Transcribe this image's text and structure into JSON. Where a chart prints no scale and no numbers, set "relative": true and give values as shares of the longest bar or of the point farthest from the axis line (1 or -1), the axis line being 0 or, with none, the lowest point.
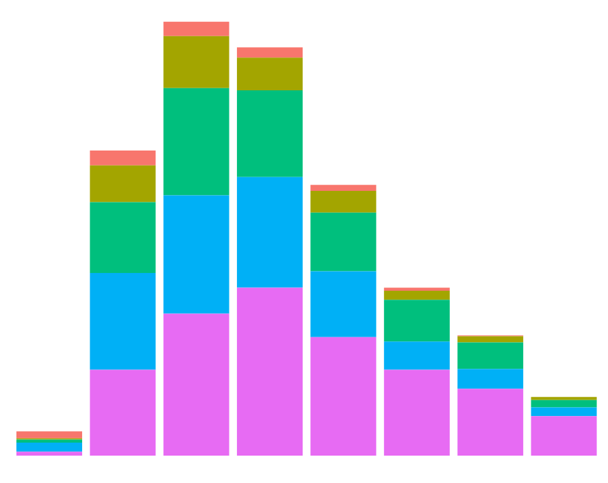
{
  "chart_data": {
    "type": "bar",
    "relative": true,
    "stacked": true,
    "categories": [
      null,
      null,
      null,
      null,
      null,
      null,
      null,
      null
    ],
    "series": [
      {
        "color": "#e76bf3",
        "values": [
          0.009,
          0.198,
          0.327,
          0.387,
          0.273,
          0.198,
          0.154,
          0.091
        ]
      },
      {
        "color": "#00b0f6",
        "values": [
          0.021,
          0.223,
          0.273,
          0.255,
          0.152,
          0.065,
          0.046,
          0.02
        ]
      },
      {
        "color": "#00bf7d",
        "values": [
          0.007,
          0.163,
          0.247,
          0.2,
          0.135,
          0.096,
          0.061,
          0.017
        ]
      },
      {
        "color": "#a3a500",
        "values": [
          0.003,
          0.085,
          0.12,
          0.075,
          0.05,
          0.021,
          0.014,
          0.007
        ]
      },
      {
        "color": "#f8766d",
        "values": [
          0.016,
          0.034,
          0.033,
          0.024,
          0.014,
          0.007,
          0.002,
          0
        ]
      }
    ]
  }
}
